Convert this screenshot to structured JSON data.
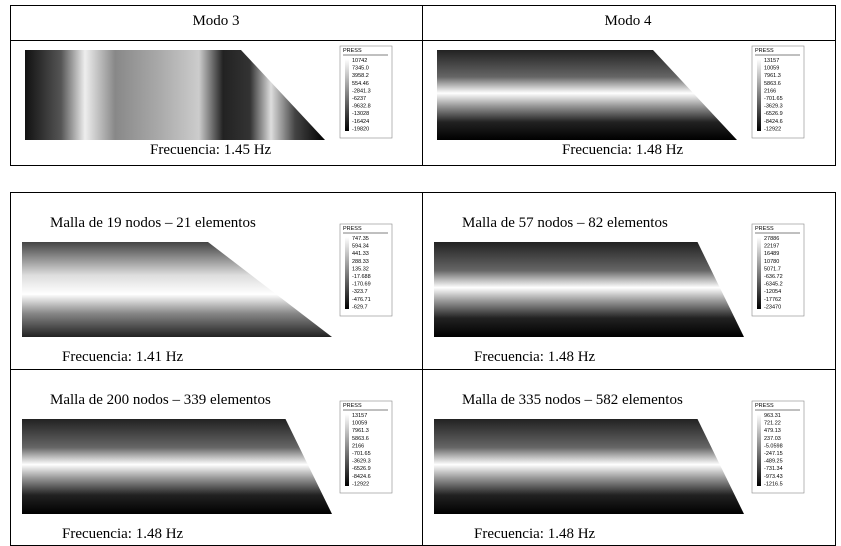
{
  "modes": [
    {
      "header": "Modo 3",
      "caption": "Frecuencia: 1.45 Hz",
      "legend": {
        "title": "PRESS",
        "values": [
          "10742",
          "7345.0",
          "3958.2",
          "554.46",
          "-2841.3",
          "-6237",
          "-9632.8",
          "-13028",
          "-16424",
          "-19820"
        ]
      }
    },
    {
      "header": "Modo 4",
      "caption": "Frecuencia: 1.48 Hz",
      "legend": {
        "title": "PRESS",
        "values": [
          "13157",
          "10059",
          "7961.3",
          "5863.6",
          "2166",
          "-701.65",
          "-3629.3",
          "-6526.9",
          "-8424.6",
          "-12922"
        ]
      }
    }
  ],
  "meshes": [
    {
      "title": "Malla de 19 nodos – 21 elementos",
      "caption": "Frecuencia: 1.41 Hz",
      "legend": {
        "title": "PRESS",
        "values": [
          "747.35",
          "594.34",
          "441.33",
          "288.33",
          "135.32",
          "-17.688",
          "-170.69",
          "-323.7",
          "-476.71",
          "-629.7"
        ]
      }
    },
    {
      "title": "Malla de 57 nodos – 82 elementos",
      "caption": "Frecuencia: 1.48 Hz",
      "legend": {
        "title": "PRESS",
        "values": [
          "27886",
          "22197",
          "16489",
          "10780",
          "5071.7",
          "-636.72",
          "-6345.2",
          "-12054",
          "-17762",
          "-23470"
        ]
      }
    },
    {
      "title": "Malla de 200 nodos – 339 elementos",
      "caption": "Frecuencia: 1.48 Hz",
      "legend": {
        "title": "PRESS",
        "values": [
          "13157",
          "10059",
          "7961.3",
          "5863.6",
          "2166",
          "-701.65",
          "-3629.3",
          "-6526.9",
          "-8424.6",
          "-12922"
        ]
      }
    },
    {
      "title": "Malla de 335 nodos – 582 elementos",
      "caption": "Frecuencia: 1.48 Hz",
      "legend": {
        "title": "PRESS",
        "values": [
          "963.31",
          "721.22",
          "479.13",
          "237.03",
          "-5.0598",
          "-247.15",
          "-489.25",
          "-731.34",
          "-973.43",
          "-1216.5"
        ]
      }
    }
  ]
}
